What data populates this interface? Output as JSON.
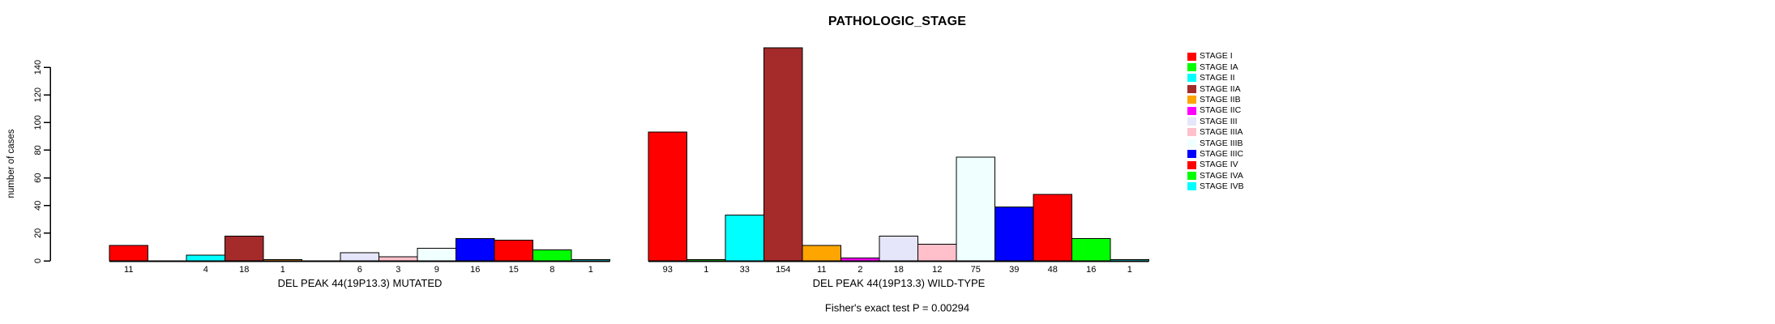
{
  "title": "PATHOLOGIC_STAGE",
  "footer": "Fisher's exact test P = 0.00294",
  "chart_data": {
    "type": "bar",
    "title": "PATHOLOGIC_STAGE",
    "ylabel": "number of cases",
    "ylim": [
      0,
      155
    ],
    "yticks": [
      0,
      20,
      40,
      60,
      80,
      100,
      120,
      140
    ],
    "grid": false,
    "legend_position": "right",
    "categories": [
      "STAGE I",
      "STAGE IA",
      "STAGE II",
      "STAGE IIA",
      "STAGE IIB",
      "STAGE IIC",
      "STAGE III",
      "STAGE IIIA",
      "STAGE IIIB",
      "STAGE IIIC",
      "STAGE IV",
      "STAGE IVA",
      "STAGE IVB"
    ],
    "palette": [
      "#ff0000",
      "#00ff00",
      "#00ffff",
      "#a52a2a",
      "#ffa500",
      "#ff00ff",
      "#e6e6fa",
      "#ffc0cb",
      "#f0ffff",
      "#0000ff",
      "#ff0000",
      "#00ff00",
      "#00ffff"
    ],
    "bar_border_color": "#000000",
    "axis_color": "#000000",
    "series": [
      {
        "name": "DEL PEAK 44(19P13.3) MUTATED",
        "values": [
          11,
          null,
          4,
          18,
          1,
          null,
          6,
          3,
          9,
          16,
          15,
          8,
          1
        ]
      },
      {
        "name": "DEL PEAK 44(19P13.3) WILD-TYPE",
        "values": [
          93,
          1,
          33,
          154,
          11,
          2,
          18,
          12,
          75,
          39,
          48,
          16,
          1
        ]
      }
    ],
    "annotation": "Fisher's exact test P = 0.00294"
  }
}
